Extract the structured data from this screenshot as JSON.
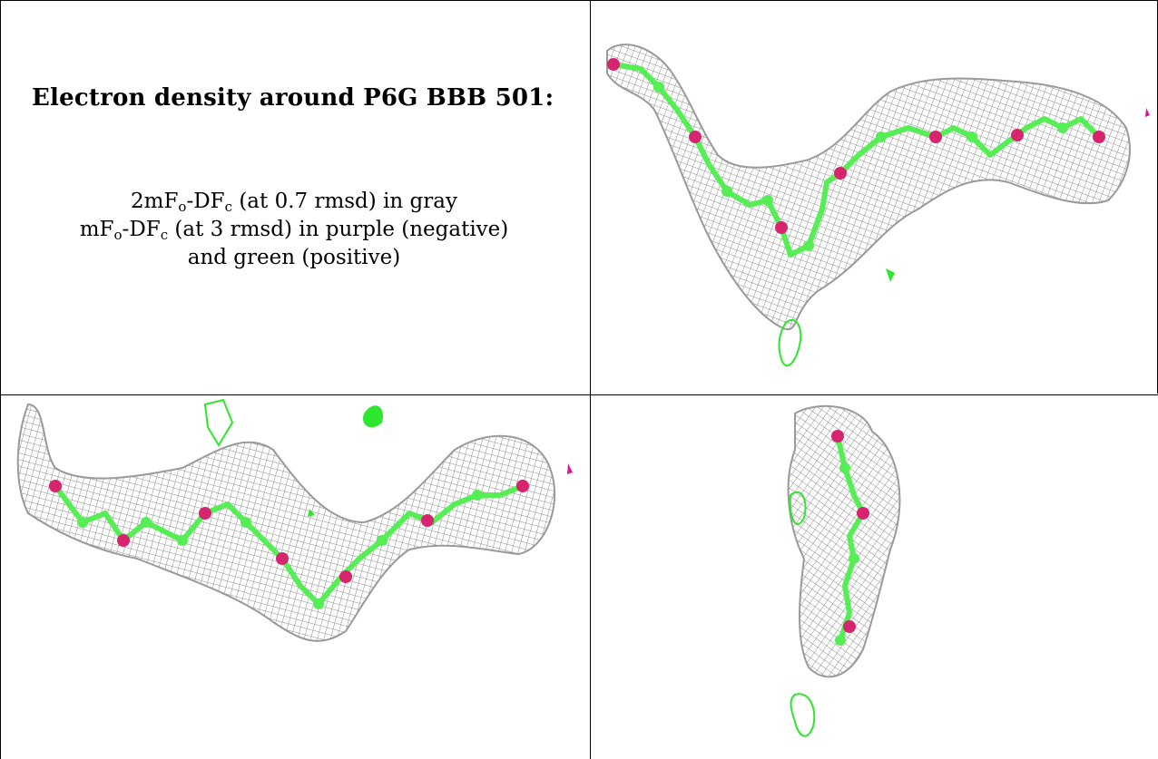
{
  "caption": {
    "title": "Electron density around P6G BBB 501:",
    "line1": {
      "prefix": "2mF",
      "sub1": "o",
      "mid": "-DF",
      "sub2": "c",
      "suffix": " (at 0.7 rmsd) in gray"
    },
    "line2": {
      "prefix": "mF",
      "sub1": "o",
      "mid": "-DF",
      "sub2": "c",
      "suffix": " (at 3 rmsd) in purple (negative)"
    },
    "line3": "and green (positive)"
  },
  "colors": {
    "mesh_2fofc": "#8c8c8c",
    "positive_density": "#2ee62e",
    "negative_density": "#d41a9a",
    "carbon_atoms": "#55ee55",
    "oxygen_atoms": "#d6246e"
  },
  "panels": [
    {
      "name": "view-top-right"
    },
    {
      "name": "view-bottom-left"
    },
    {
      "name": "view-bottom-right"
    }
  ]
}
